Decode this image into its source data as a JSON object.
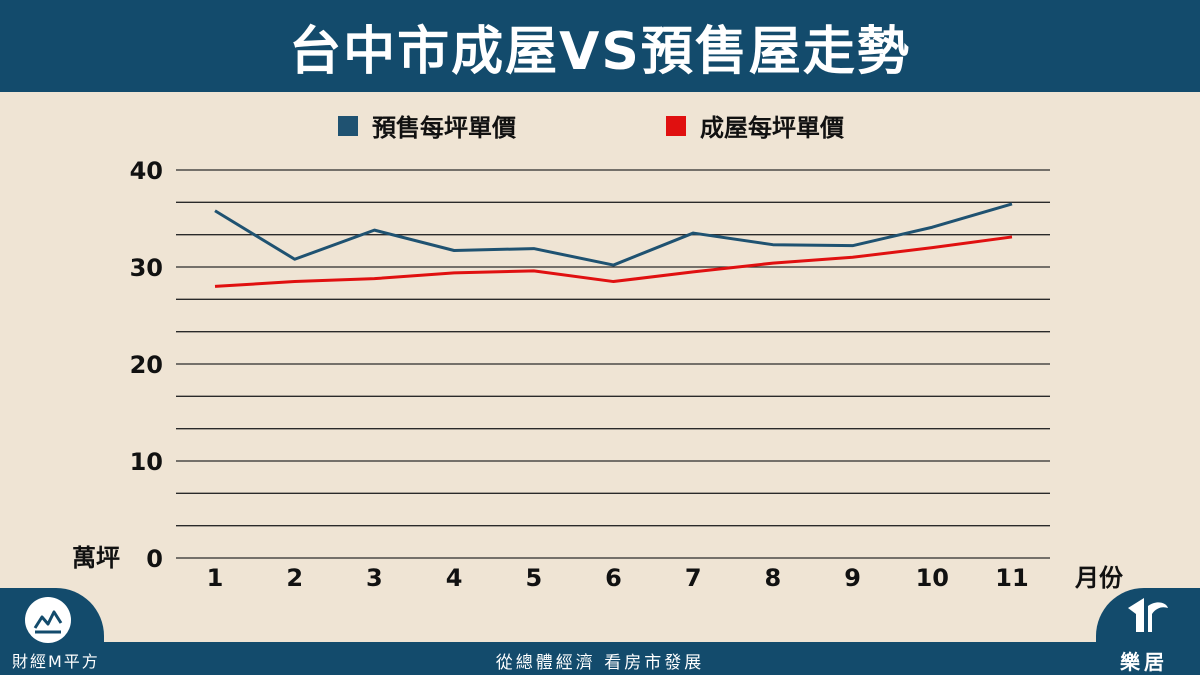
{
  "header": {
    "title": "台中市成屋VS預售屋走勢"
  },
  "chart_data": {
    "type": "line",
    "title": "台中市成屋VS預售屋走勢",
    "xlabel": "月份",
    "ylabel": "萬坪",
    "x": [
      "1",
      "2",
      "3",
      "4",
      "5",
      "6",
      "7",
      "8",
      "9",
      "10",
      "11"
    ],
    "ylim": [
      0,
      40
    ],
    "yticks": [
      0,
      10,
      20,
      30,
      40
    ],
    "grid": true,
    "legend_position": "top",
    "series": [
      {
        "name": "預售每坪單價",
        "color": "#1f5271",
        "values": [
          35.8,
          30.8,
          33.8,
          31.7,
          31.9,
          30.2,
          33.5,
          32.3,
          32.2,
          34.1,
          36.5
        ]
      },
      {
        "name": "成屋每坪單價",
        "color": "#e01010",
        "values": [
          28.0,
          28.5,
          28.8,
          29.4,
          29.6,
          28.5,
          29.5,
          30.4,
          31.0,
          32.0,
          33.1
        ]
      }
    ]
  },
  "footer": {
    "brand_left": "財經M平方",
    "slogan": "從總體經濟 看房市發展",
    "brand_right": "樂居"
  },
  "icons": {
    "brand_left": "chart-trend-icon",
    "brand_right": "house-logo-icon"
  },
  "colors": {
    "header_bg": "#134b6c",
    "page_bg": "#efe4d4"
  }
}
